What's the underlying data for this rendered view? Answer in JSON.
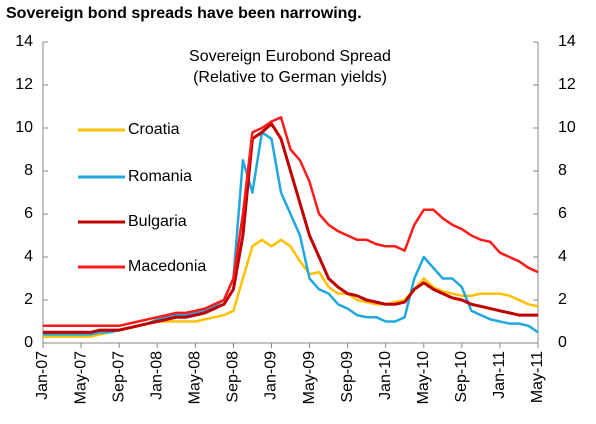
{
  "chart_data": {
    "type": "line",
    "title": "Sovereign bond spreads have been narrowing.",
    "subtitle": [
      "Sovereign Eurobond Spread",
      "(Relative to German yields)"
    ],
    "categories": [
      "Jan-07",
      null,
      null,
      null,
      "May-07",
      null,
      null,
      null,
      "Sep-07",
      null,
      null,
      null,
      "Jan-08",
      null,
      null,
      null,
      "May-08",
      null,
      null,
      null,
      "Sep-08",
      null,
      null,
      null,
      "Jan-09",
      null,
      null,
      null,
      "May-09",
      null,
      null,
      null,
      "Sep-09",
      null,
      null,
      null,
      "Jan-10",
      null,
      null,
      null,
      "May-10",
      null,
      null,
      null,
      "Sep-10",
      null,
      null,
      null,
      "Jan-11",
      null,
      null,
      null,
      "May-11"
    ],
    "series": [
      {
        "name": "Croatia",
        "color": "#ffc000",
        "values": [
          0.3,
          0.3,
          0.3,
          0.3,
          0.3,
          0.3,
          0.4,
          0.5,
          0.6,
          0.7,
          0.8,
          0.9,
          1.0,
          1.0,
          1.0,
          1.0,
          1.0,
          1.1,
          1.2,
          1.3,
          1.5,
          3.0,
          4.5,
          4.8,
          4.5,
          4.8,
          4.5,
          3.8,
          3.2,
          3.3,
          2.6,
          2.3,
          2.3,
          2.0,
          1.9,
          1.8,
          1.8,
          1.9,
          2.0,
          2.5,
          3.0,
          2.6,
          2.4,
          2.3,
          2.2,
          2.2,
          2.3,
          2.3,
          2.3,
          2.2,
          2.0,
          1.8,
          1.7
        ]
      },
      {
        "name": "Romania",
        "color": "#1fa8e0",
        "values": [
          0.4,
          0.4,
          0.4,
          0.4,
          0.4,
          0.4,
          0.5,
          0.5,
          0.6,
          0.7,
          0.8,
          0.9,
          1.1,
          1.2,
          1.3,
          1.3,
          1.4,
          1.5,
          1.7,
          2.0,
          3.0,
          8.5,
          7.0,
          9.8,
          9.5,
          7.0,
          6.0,
          5.0,
          3.0,
          2.5,
          2.3,
          1.8,
          1.6,
          1.3,
          1.2,
          1.2,
          1.0,
          1.0,
          1.2,
          3.0,
          4.0,
          3.5,
          3.0,
          3.0,
          2.6,
          1.5,
          1.3,
          1.1,
          1.0,
          0.9,
          0.9,
          0.8,
          0.5
        ]
      },
      {
        "name": "Bulgaria",
        "color": "#c00000",
        "values": [
          0.5,
          0.5,
          0.5,
          0.5,
          0.5,
          0.5,
          0.6,
          0.6,
          0.6,
          0.7,
          0.8,
          0.9,
          1.0,
          1.1,
          1.2,
          1.2,
          1.3,
          1.4,
          1.6,
          1.8,
          2.5,
          5.0,
          9.5,
          9.8,
          10.2,
          9.5,
          8.0,
          6.5,
          5.0,
          4.0,
          3.0,
          2.6,
          2.3,
          2.2,
          2.0,
          1.9,
          1.8,
          1.8,
          1.9,
          2.5,
          2.8,
          2.5,
          2.3,
          2.1,
          2.0,
          1.8,
          1.7,
          1.6,
          1.5,
          1.4,
          1.3,
          1.3,
          1.3
        ]
      },
      {
        "name": "Macedonia",
        "color": "#ff1a1a",
        "values": [
          0.8,
          0.8,
          0.8,
          0.8,
          0.8,
          0.8,
          0.8,
          0.8,
          0.8,
          0.9,
          1.0,
          1.1,
          1.2,
          1.3,
          1.4,
          1.4,
          1.5,
          1.6,
          1.8,
          2.0,
          3.0,
          6.0,
          9.8,
          10.0,
          10.3,
          10.5,
          9.0,
          8.5,
          7.5,
          6.0,
          5.5,
          5.2,
          5.0,
          4.8,
          4.8,
          4.6,
          4.5,
          4.5,
          4.3,
          5.5,
          6.2,
          6.2,
          5.8,
          5.5,
          5.3,
          5.0,
          4.8,
          4.7,
          4.2,
          4.0,
          3.8,
          3.5,
          3.3
        ]
      }
    ],
    "ylim": [
      0,
      14
    ],
    "yticks": [
      0,
      2,
      4,
      6,
      8,
      10,
      12,
      14
    ],
    "y2lim": [
      0,
      14
    ],
    "y2ticks": [
      0,
      2,
      4,
      6,
      8,
      10,
      12,
      14
    ],
    "grid": false
  }
}
